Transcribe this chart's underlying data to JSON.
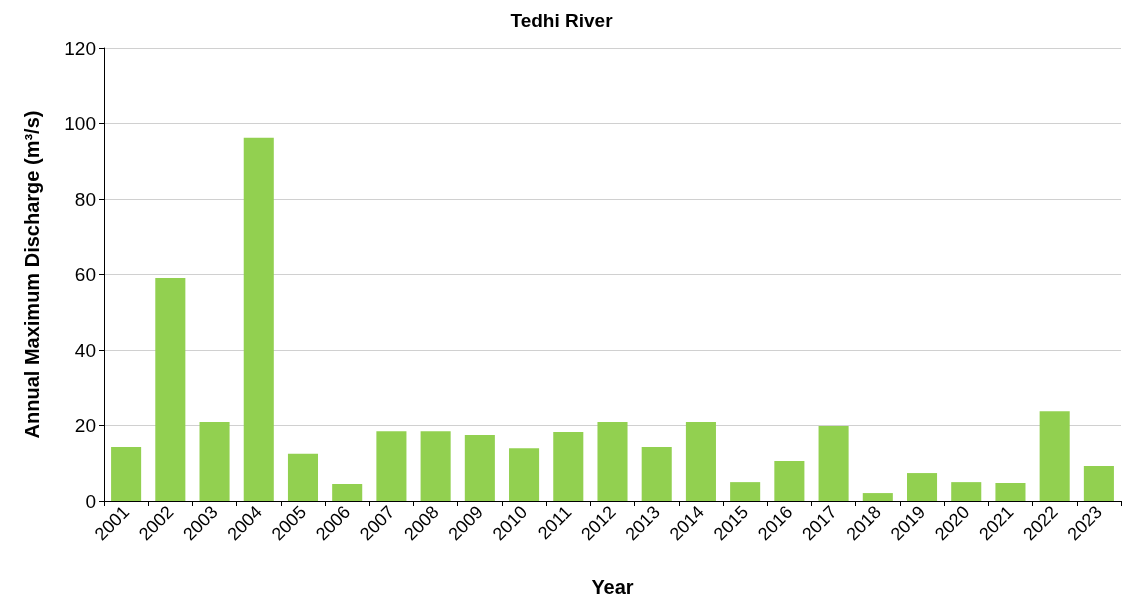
{
  "chart_data": {
    "type": "bar",
    "title": "Tedhi River",
    "xlabel": "Year",
    "ylabel": "Annual Maximum Discharge (m³/s)",
    "categories": [
      "2001",
      "2002",
      "2003",
      "2004",
      "2005",
      "2006",
      "2007",
      "2008",
      "2009",
      "2010",
      "2011",
      "2012",
      "2013",
      "2014",
      "2015",
      "2016",
      "2017",
      "2018",
      "2019",
      "2020",
      "2021",
      "2022",
      "2023"
    ],
    "values": [
      14.3,
      59.1,
      20.9,
      96.2,
      12.5,
      4.5,
      18.5,
      18.5,
      17.5,
      14.0,
      18.3,
      20.9,
      14.3,
      20.9,
      5.0,
      10.6,
      19.9,
      2.1,
      7.4,
      5.0,
      4.8,
      23.8,
      9.3
    ],
    "color": "#92d050",
    "ylim": [
      0,
      120
    ],
    "yticks": [
      0,
      20,
      40,
      60,
      80,
      100,
      120
    ],
    "grid": "y"
  }
}
